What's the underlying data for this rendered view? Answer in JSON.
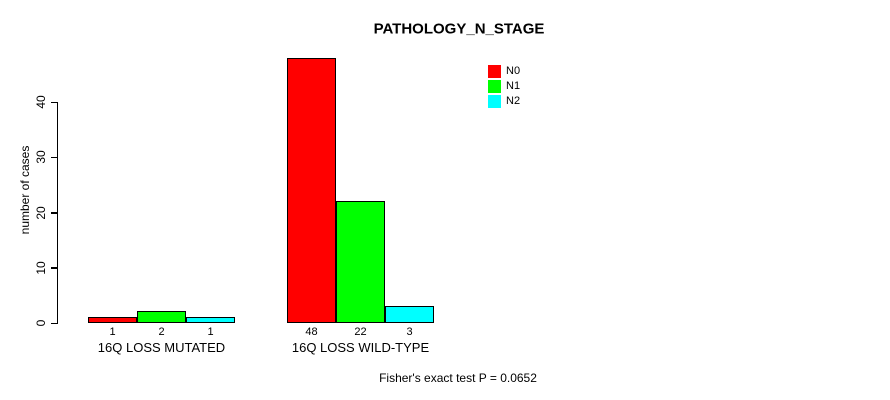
{
  "chart_data": {
    "type": "bar",
    "title": "PATHOLOGY_N_STAGE",
    "ylabel": "number of cases",
    "xlabel": "",
    "categories": [
      "16Q LOSS MUTATED",
      "16Q LOSS WILD-TYPE"
    ],
    "series": [
      {
        "name": "N0",
        "color": "#ff0000",
        "values": [
          1,
          48
        ]
      },
      {
        "name": "N1",
        "color": "#00ff00",
        "values": [
          2,
          22
        ]
      },
      {
        "name": "N2",
        "color": "#00ffff",
        "values": [
          1,
          3
        ]
      }
    ],
    "bar_value_labels": [
      [
        1,
        2,
        1
      ],
      [
        48,
        22,
        3
      ]
    ],
    "yticks": [
      0,
      10,
      20,
      30,
      40
    ],
    "ylim": [
      0,
      48
    ],
    "grid": false,
    "legend_position": "top-right",
    "bar_border_color": "#000000",
    "annotation": "Fisher's exact test P = 0.0652"
  }
}
